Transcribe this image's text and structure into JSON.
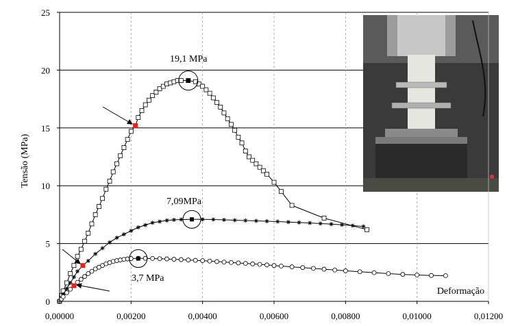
{
  "chart_data": {
    "type": "line",
    "title": "",
    "xlabel": "Deformação",
    "ylabel": "Tensão (MPa)",
    "xlim": [
      0,
      0.012
    ],
    "ylim": [
      0,
      25
    ],
    "xticks": [
      0,
      0.002,
      0.004,
      0.006,
      0.008,
      0.01,
      0.012
    ],
    "xtick_labels": [
      "0,00000",
      "0,00200",
      "0,00400",
      "0,00600",
      "0,00800",
      "0,01000",
      "0,01200"
    ],
    "yticks": [
      0,
      5,
      10,
      15,
      20,
      25
    ],
    "ytick_labels": [
      "0",
      "5",
      "10",
      "15",
      "20",
      "25"
    ],
    "grid": "horizontal solid, vertical dashed",
    "legend": "none",
    "photo_inset": "top-right",
    "series": [
      {
        "marker": "open-square",
        "peak": [
          0.0036,
          19.1
        ],
        "highlight": [
          0.00212,
          15.2
        ],
        "x": [
          0,
          5e-05,
          0.0001,
          0.0002,
          0.0003,
          0.0004,
          0.0005,
          0.0006,
          0.0007,
          0.0008,
          0.0009,
          0.001,
          0.0011,
          0.0012,
          0.0013,
          0.0014,
          0.0015,
          0.0016,
          0.0017,
          0.0018,
          0.0019,
          0.002,
          0.00212,
          0.0022,
          0.0023,
          0.0024,
          0.0025,
          0.0026,
          0.0027,
          0.0028,
          0.0029,
          0.003,
          0.0031,
          0.0032,
          0.0033,
          0.0034,
          0.0036,
          0.0038,
          0.0039,
          0.004,
          0.0041,
          0.0042,
          0.0043,
          0.0044,
          0.0045,
          0.0046,
          0.0047,
          0.0048,
          0.0049,
          0.005,
          0.0051,
          0.0052,
          0.0053,
          0.0054,
          0.0055,
          0.0056,
          0.0057,
          0.0058,
          0.006,
          0.0062,
          0.0065,
          0.0074,
          0.0086
        ],
        "y": [
          0,
          0.5,
          0.9,
          1.6,
          2.4,
          3.1,
          3.9,
          4.5,
          5.2,
          5.9,
          6.7,
          7.5,
          8.2,
          8.9,
          9.7,
          10.4,
          11.2,
          11.9,
          12.6,
          13.3,
          14.0,
          14.7,
          15.2,
          15.9,
          16.5,
          17.0,
          17.4,
          17.8,
          18.1,
          18.4,
          18.6,
          18.8,
          18.9,
          19.0,
          19.1,
          19.1,
          19.1,
          19.0,
          18.8,
          18.6,
          18.3,
          18.0,
          17.6,
          17.2,
          16.8,
          16.3,
          15.8,
          15.3,
          14.8,
          14.2,
          13.7,
          13.0,
          12.5,
          12.2,
          11.9,
          11.6,
          11.3,
          11.0,
          10.3,
          9.5,
          8.3,
          7.2,
          6.2
        ]
      },
      {
        "marker": "star",
        "peak": [
          0.0037,
          7.09
        ],
        "highlight": [
          0.00065,
          3.1
        ],
        "x": [
          0,
          5e-05,
          0.0001,
          0.0002,
          0.0003,
          0.0004,
          0.0005,
          0.00065,
          0.0008,
          0.001,
          0.0012,
          0.0014,
          0.0016,
          0.0018,
          0.002,
          0.0022,
          0.0024,
          0.0026,
          0.0028,
          0.003,
          0.0032,
          0.0034,
          0.0037,
          0.004,
          0.0043,
          0.0046,
          0.0049,
          0.0052,
          0.0055,
          0.0058,
          0.0061,
          0.0064,
          0.0067,
          0.007,
          0.0073,
          0.0076,
          0.0079,
          0.0082,
          0.0085
        ],
        "y": [
          0,
          0.3,
          0.6,
          1.1,
          1.6,
          2.1,
          2.6,
          3.1,
          3.5,
          4.1,
          4.6,
          5.1,
          5.5,
          5.8,
          6.1,
          6.4,
          6.6,
          6.8,
          6.9,
          7.0,
          7.05,
          7.08,
          7.09,
          7.09,
          7.08,
          7.05,
          7.02,
          6.99,
          6.96,
          6.93,
          6.9,
          6.86,
          6.82,
          6.78,
          6.73,
          6.68,
          6.62,
          6.55,
          6.48
        ]
      },
      {
        "marker": "open-circle",
        "peak": [
          0.0022,
          3.7
        ],
        "highlight": [
          0.0004,
          1.35
        ],
        "x": [
          0,
          5e-05,
          0.0001,
          0.0002,
          0.0003,
          0.0004,
          0.0005,
          0.0006,
          0.0007,
          0.0008,
          0.0009,
          0.001,
          0.0011,
          0.0012,
          0.0013,
          0.0014,
          0.0015,
          0.0016,
          0.0017,
          0.0018,
          0.0019,
          0.002,
          0.0022,
          0.0024,
          0.0026,
          0.0028,
          0.003,
          0.0032,
          0.0034,
          0.0036,
          0.0038,
          0.004,
          0.0042,
          0.0044,
          0.0046,
          0.0048,
          0.005,
          0.0052,
          0.0054,
          0.0056,
          0.0058,
          0.006,
          0.0062,
          0.0065,
          0.0068,
          0.0071,
          0.0074,
          0.0077,
          0.008,
          0.0084,
          0.0088,
          0.0092,
          0.0096,
          0.01,
          0.0104,
          0.0108
        ],
        "y": [
          0,
          0.2,
          0.4,
          0.75,
          1.05,
          1.35,
          1.65,
          1.9,
          2.15,
          2.4,
          2.6,
          2.8,
          2.95,
          3.1,
          3.25,
          3.35,
          3.45,
          3.52,
          3.58,
          3.63,
          3.67,
          3.7,
          3.72,
          3.72,
          3.71,
          3.69,
          3.67,
          3.64,
          3.61,
          3.58,
          3.55,
          3.52,
          3.48,
          3.44,
          3.4,
          3.36,
          3.32,
          3.28,
          3.24,
          3.2,
          3.15,
          3.1,
          3.05,
          2.98,
          2.92,
          2.85,
          2.78,
          2.71,
          2.64,
          2.56,
          2.48,
          2.4,
          2.33,
          2.28,
          2.24,
          2.22
        ]
      }
    ],
    "annotations": [
      {
        "text": "19,1 MPa",
        "x": 0.0032,
        "y": 20.7
      },
      {
        "text": "7,09MPa",
        "x": 0.0032,
        "y": 8.3
      },
      {
        "text": "3,7 MPa",
        "x": 0.002,
        "y": 3.2
      }
    ]
  }
}
